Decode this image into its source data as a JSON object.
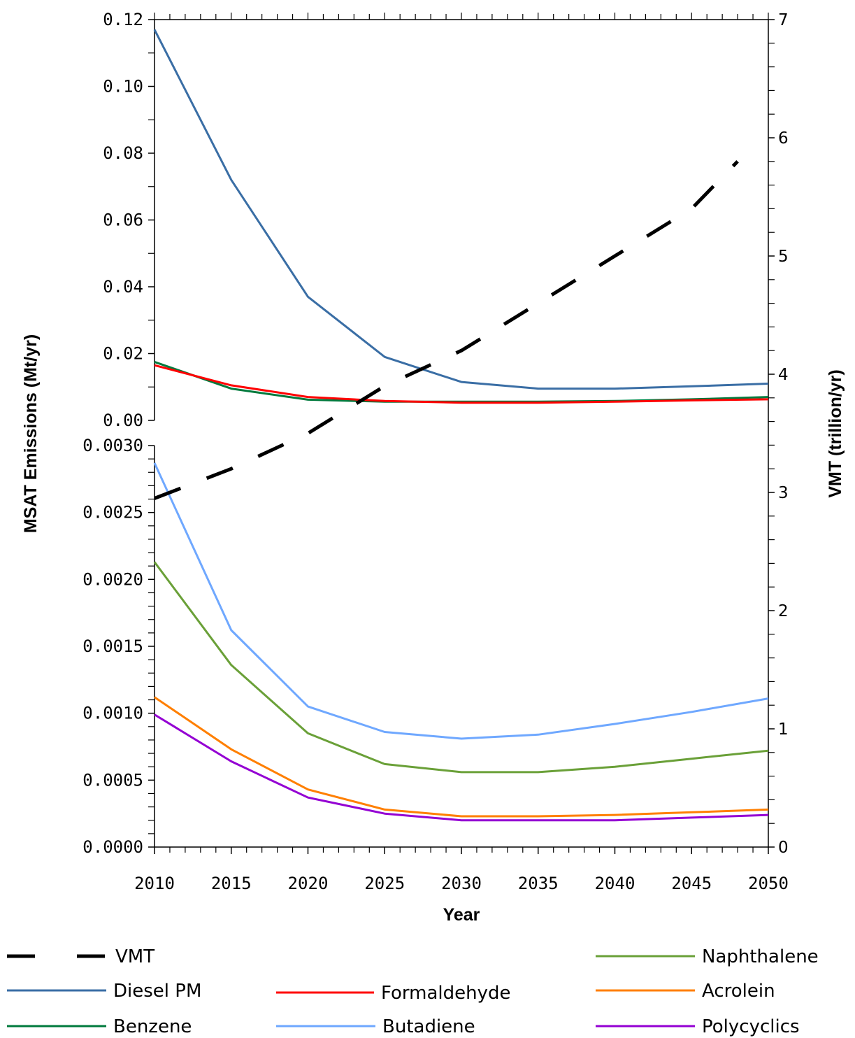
{
  "chart_data": {
    "type": "line",
    "title": "",
    "xlabel": "Year",
    "ylabel_left": "MSAT Emissions (Mt/yr)",
    "ylabel_right": "VMT (trillion/yr)",
    "xlim": [
      2010,
      2050
    ],
    "x_ticks": [
      "2010",
      "2015",
      "2020",
      "2025",
      "2030",
      "2035",
      "2040",
      "2045",
      "2050"
    ],
    "upper_panel": {
      "ylim": [
        0,
        0.12
      ],
      "y_ticks": [
        "0.00",
        "0.02",
        "0.04",
        "0.06",
        "0.08",
        "0.10",
        "0.12"
      ]
    },
    "lower_panel": {
      "ylim": [
        0,
        0.003
      ],
      "y_ticks": [
        "0.0000",
        "0.0005",
        "0.0010",
        "0.0015",
        "0.0020",
        "0.0025",
        "0.0030"
      ]
    },
    "right_axis": {
      "ylim": [
        0,
        7
      ],
      "y_ticks": [
        "0",
        "1",
        "2",
        "3",
        "4",
        "5",
        "6",
        "7"
      ]
    },
    "x": [
      2010,
      2015,
      2020,
      2025,
      2030,
      2035,
      2040,
      2045,
      2050
    ],
    "series": [
      {
        "name": "VMT",
        "panel": "right",
        "color": "#000000",
        "dashed": true,
        "x": [
          2010,
          2015,
          2020,
          2025,
          2030,
          2035,
          2040,
          2045,
          2048
        ],
        "values": [
          2.95,
          3.2,
          3.5,
          3.9,
          4.2,
          4.6,
          5.0,
          5.4,
          5.8
        ]
      },
      {
        "name": "Diesel PM",
        "panel": "upper",
        "color": "#3a6ea5",
        "values": [
          0.117,
          0.072,
          0.037,
          0.019,
          0.0115,
          0.0095,
          0.0095,
          0.0102,
          0.011
        ]
      },
      {
        "name": "Formaldehyde",
        "panel": "upper",
        "color": "#ff0000",
        "values": [
          0.0165,
          0.0105,
          0.007,
          0.0058,
          0.0053,
          0.0053,
          0.0056,
          0.006,
          0.0063
        ]
      },
      {
        "name": "Benzene",
        "panel": "upper",
        "color": "#007a3d",
        "values": [
          0.0175,
          0.0095,
          0.0062,
          0.0056,
          0.0056,
          0.0056,
          0.0058,
          0.0063,
          0.007
        ]
      },
      {
        "name": "Butadiene",
        "panel": "lower",
        "color": "#6fa8ff",
        "values": [
          0.00287,
          0.00162,
          0.00105,
          0.00086,
          0.00081,
          0.00084,
          0.00092,
          0.00101,
          0.00111
        ]
      },
      {
        "name": "Naphthalene",
        "panel": "lower",
        "color": "#6aa038",
        "values": [
          0.00213,
          0.00136,
          0.00085,
          0.00062,
          0.00056,
          0.00056,
          0.0006,
          0.00066,
          0.00072
        ]
      },
      {
        "name": "Acrolein",
        "panel": "lower",
        "color": "#ff7f00",
        "values": [
          0.00112,
          0.00073,
          0.00043,
          0.00028,
          0.00023,
          0.00023,
          0.00024,
          0.00026,
          0.00028
        ]
      },
      {
        "name": "Polycyclics",
        "panel": "lower",
        "color": "#9400d3",
        "values": [
          0.00099,
          0.00064,
          0.00037,
          0.00025,
          0.0002,
          0.0002,
          0.0002,
          0.00022,
          0.00024
        ]
      }
    ],
    "legend": {
      "placement": "bottom",
      "entries": [
        "VMT",
        "Naphthalene",
        "Diesel PM",
        "Formaldehyde",
        "Acrolein",
        "Benzene",
        "Butadiene",
        "Polycyclics"
      ]
    },
    "grid": false
  }
}
